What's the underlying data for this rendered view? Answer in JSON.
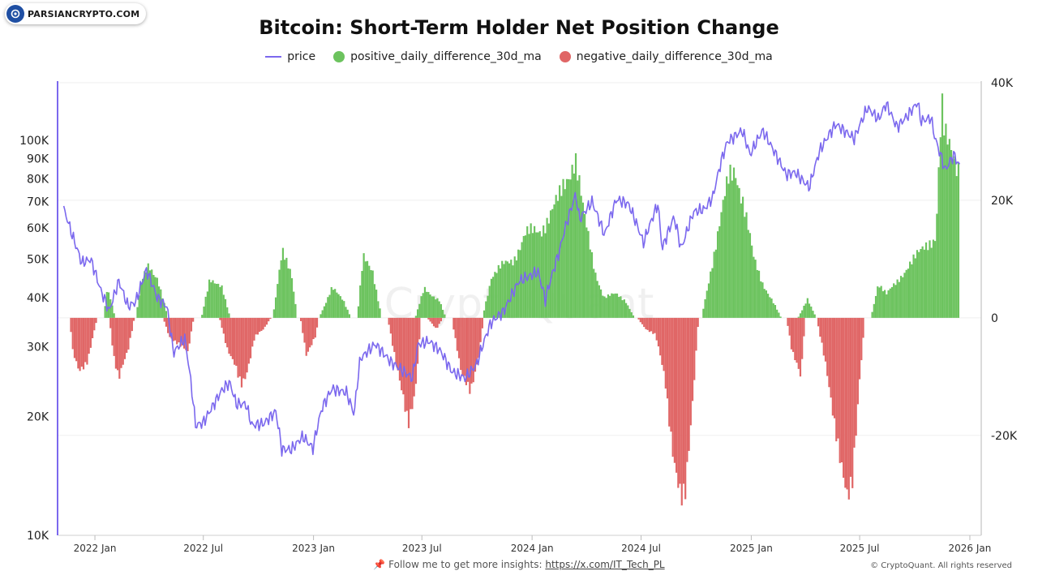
{
  "logo": {
    "text": "PARSIANCRYPTO.COM"
  },
  "footer": {
    "follow_text": "Follow me to get more insights: ",
    "link_text": "https://x.com/IT_Tech_PL",
    "copyright": "© CryptoQuant. All rights reserved"
  },
  "watermark": "CryptoQuant",
  "chart_data": {
    "type": "bar",
    "title": "Bitcoin: Short-Term Holder Net Position Change",
    "xlabel": "",
    "ylabel": "",
    "legend_position": "top-center",
    "colors": {
      "price": "#7b68ee",
      "positive": "#6cc35e",
      "negative": "#e06666"
    },
    "x_range": [
      "2021-11-01",
      "2026-01-20"
    ],
    "x_ticks": [
      {
        "date": "2022-01-01",
        "label": "2022 Jan"
      },
      {
        "date": "2022-07-01",
        "label": "2022 Jul"
      },
      {
        "date": "2023-01-01",
        "label": "2023 Jan"
      },
      {
        "date": "2023-07-01",
        "label": "2023 Jul"
      },
      {
        "date": "2024-01-01",
        "label": "2024 Jan"
      },
      {
        "date": "2024-07-01",
        "label": "2024 Jul"
      },
      {
        "date": "2025-01-01",
        "label": "2025 Jan"
      },
      {
        "date": "2025-07-01",
        "label": "2025 Jul"
      },
      {
        "date": "2026-01-01",
        "label": "2026 Jan"
      }
    ],
    "y_left": {
      "scale": "log",
      "range": [
        10000,
        140000
      ],
      "ticks": [
        {
          "value": 10000,
          "label": "10K"
        },
        {
          "value": 20000,
          "label": "20K"
        },
        {
          "value": 30000,
          "label": "30K"
        },
        {
          "value": 40000,
          "label": "40K"
        },
        {
          "value": 50000,
          "label": "50K"
        },
        {
          "value": 60000,
          "label": "60K"
        },
        {
          "value": 70000,
          "label": "70K"
        },
        {
          "value": 80000,
          "label": "80K"
        },
        {
          "value": 90000,
          "label": "90K"
        },
        {
          "value": 100000,
          "label": "100K"
        }
      ]
    },
    "y_right": {
      "scale": "linear",
      "range": [
        -37000,
        40000
      ],
      "ticks": [
        {
          "value": 40000,
          "label": "40K"
        },
        {
          "value": 20000,
          "label": "20K"
        },
        {
          "value": 0,
          "label": "0"
        },
        {
          "value": -20000,
          "label": "-20K"
        }
      ]
    },
    "series": [
      {
        "name": "price",
        "type": "line",
        "points": [
          [
            "2021-11-10",
            67000
          ],
          [
            "2021-11-25",
            57000
          ],
          [
            "2021-12-10",
            49000
          ],
          [
            "2021-12-25",
            50000
          ],
          [
            "2022-01-10",
            42000
          ],
          [
            "2022-01-25",
            37000
          ],
          [
            "2022-02-10",
            44000
          ],
          [
            "2022-02-25",
            38000
          ],
          [
            "2022-03-10",
            39000
          ],
          [
            "2022-03-28",
            47000
          ],
          [
            "2022-04-15",
            40000
          ],
          [
            "2022-05-01",
            38000
          ],
          [
            "2022-05-12",
            29000
          ],
          [
            "2022-05-31",
            31500
          ],
          [
            "2022-06-13",
            22500
          ],
          [
            "2022-06-18",
            19000
          ],
          [
            "2022-07-01",
            19300
          ],
          [
            "2022-07-15",
            21000
          ],
          [
            "2022-08-01",
            23300
          ],
          [
            "2022-08-14",
            24400
          ],
          [
            "2022-08-25",
            21500
          ],
          [
            "2022-09-10",
            21500
          ],
          [
            "2022-09-20",
            19000
          ],
          [
            "2022-10-10",
            19200
          ],
          [
            "2022-10-30",
            20600
          ],
          [
            "2022-11-09",
            16500
          ],
          [
            "2022-11-25",
            16500
          ],
          [
            "2022-12-14",
            17800
          ],
          [
            "2022-12-31",
            16600
          ],
          [
            "2023-01-15",
            21000
          ],
          [
            "2023-02-01",
            23500
          ],
          [
            "2023-02-25",
            23000
          ],
          [
            "2023-03-10",
            20200
          ],
          [
            "2023-03-20",
            28000
          ],
          [
            "2023-04-14",
            30500
          ],
          [
            "2023-05-10",
            27500
          ],
          [
            "2023-06-15",
            25000
          ],
          [
            "2023-06-25",
            30500
          ],
          [
            "2023-07-13",
            31000
          ],
          [
            "2023-08-01",
            29300
          ],
          [
            "2023-08-20",
            26000
          ],
          [
            "2023-09-11",
            25000
          ],
          [
            "2023-09-30",
            27000
          ],
          [
            "2023-10-24",
            34500
          ],
          [
            "2023-11-15",
            37000
          ],
          [
            "2023-12-10",
            44000
          ],
          [
            "2024-01-11",
            46500
          ],
          [
            "2024-01-23",
            39500
          ],
          [
            "2024-02-15",
            52000
          ],
          [
            "2024-02-28",
            62000
          ],
          [
            "2024-03-14",
            73000
          ],
          [
            "2024-03-20",
            63000
          ],
          [
            "2024-04-10",
            70000
          ],
          [
            "2024-05-01",
            57500
          ],
          [
            "2024-05-21",
            71000
          ],
          [
            "2024-06-10",
            69000
          ],
          [
            "2024-07-05",
            55000
          ],
          [
            "2024-07-29",
            69000
          ],
          [
            "2024-08-05",
            53000
          ],
          [
            "2024-08-25",
            64000
          ],
          [
            "2024-09-06",
            53000
          ],
          [
            "2024-09-27",
            66000
          ],
          [
            "2024-10-15",
            67000
          ],
          [
            "2024-10-29",
            72000
          ],
          [
            "2024-11-13",
            90000
          ],
          [
            "2024-11-22",
            99000
          ],
          [
            "2024-12-17",
            106000
          ],
          [
            "2024-12-30",
            92000
          ],
          [
            "2025-01-20",
            106000
          ],
          [
            "2025-02-03",
            97000
          ],
          [
            "2025-02-28",
            82000
          ],
          [
            "2025-03-15",
            83000
          ],
          [
            "2025-04-08",
            76000
          ],
          [
            "2025-04-25",
            94000
          ],
          [
            "2025-05-22",
            110000
          ],
          [
            "2025-06-22",
            101000
          ],
          [
            "2025-07-14",
            121000
          ],
          [
            "2025-08-02",
            113000
          ],
          [
            "2025-08-14",
            124000
          ],
          [
            "2025-09-01",
            108000
          ],
          [
            "2025-09-20",
            116000
          ],
          [
            "2025-10-06",
            125000
          ],
          [
            "2025-10-11",
            112000
          ],
          [
            "2025-10-28",
            114000
          ],
          [
            "2025-11-04",
            101000
          ],
          [
            "2025-11-21",
            84000
          ],
          [
            "2025-12-05",
            92000
          ],
          [
            "2025-12-15",
            86000
          ]
        ]
      },
      {
        "name": "positive_daily_difference_30d_ma",
        "type": "area",
        "points": [
          [
            "2022-01-15",
            0
          ],
          [
            "2022-01-22",
            5000
          ],
          [
            "2022-02-04",
            0
          ],
          [
            "2022-03-10",
            0
          ],
          [
            "2022-03-20",
            6000
          ],
          [
            "2022-04-01",
            9000
          ],
          [
            "2022-04-15",
            7000
          ],
          [
            "2022-05-03",
            0
          ],
          [
            "2022-06-28",
            0
          ],
          [
            "2022-07-12",
            7000
          ],
          [
            "2022-08-01",
            5000
          ],
          [
            "2022-08-15",
            0
          ],
          [
            "2022-10-25",
            0
          ],
          [
            "2022-11-10",
            11000
          ],
          [
            "2022-11-25",
            8000
          ],
          [
            "2022-12-05",
            0
          ],
          [
            "2023-01-10",
            0
          ],
          [
            "2023-02-01",
            5000
          ],
          [
            "2023-02-20",
            3000
          ],
          [
            "2023-03-05",
            0
          ],
          [
            "2023-03-15",
            0
          ],
          [
            "2023-03-25",
            10000
          ],
          [
            "2023-04-10",
            8000
          ],
          [
            "2023-04-25",
            0
          ],
          [
            "2023-06-20",
            0
          ],
          [
            "2023-07-05",
            5000
          ],
          [
            "2023-07-30",
            3000
          ],
          [
            "2023-08-10",
            0
          ],
          [
            "2023-10-10",
            0
          ],
          [
            "2023-10-25",
            7000
          ],
          [
            "2023-11-15",
            9000
          ],
          [
            "2023-12-01",
            10000
          ],
          [
            "2023-12-20",
            14000
          ],
          [
            "2024-01-15",
            15000
          ],
          [
            "2024-02-15",
            20000
          ],
          [
            "2024-03-13",
            28000
          ],
          [
            "2024-03-28",
            17000
          ],
          [
            "2024-04-15",
            8000
          ],
          [
            "2024-04-30",
            3500
          ],
          [
            "2024-05-20",
            4000
          ],
          [
            "2024-06-05",
            3000
          ],
          [
            "2024-06-20",
            0
          ],
          [
            "2024-10-10",
            0
          ],
          [
            "2024-10-25",
            8000
          ],
          [
            "2024-11-10",
            16000
          ],
          [
            "2024-11-25",
            24000
          ],
          [
            "2024-12-05",
            26000
          ],
          [
            "2024-12-18",
            20000
          ],
          [
            "2025-01-05",
            10000
          ],
          [
            "2025-01-20",
            6000
          ],
          [
            "2025-02-05",
            3000
          ],
          [
            "2025-02-20",
            0
          ],
          [
            "2025-03-20",
            0
          ],
          [
            "2025-04-05",
            3000
          ],
          [
            "2025-04-20",
            0
          ],
          [
            "2025-07-20",
            0
          ],
          [
            "2025-08-01",
            6000
          ],
          [
            "2025-08-15",
            4000
          ],
          [
            "2025-09-01",
            6000
          ],
          [
            "2025-09-20",
            9000
          ],
          [
            "2025-10-10",
            11000
          ],
          [
            "2025-10-25",
            13000
          ],
          [
            "2025-11-05",
            14000
          ],
          [
            "2025-11-15",
            36000
          ],
          [
            "2025-11-20",
            30000
          ],
          [
            "2025-12-01",
            28000
          ],
          [
            "2025-12-15",
            26000
          ]
        ]
      },
      {
        "name": "negative_daily_difference_30d_ma",
        "type": "area",
        "points": [
          [
            "2021-11-20",
            0
          ],
          [
            "2021-11-25",
            -6000
          ],
          [
            "2021-12-05",
            -9000
          ],
          [
            "2021-12-20",
            -7000
          ],
          [
            "2022-01-05",
            0
          ],
          [
            "2022-01-25",
            0
          ],
          [
            "2022-02-01",
            -6000
          ],
          [
            "2022-02-10",
            -10000
          ],
          [
            "2022-02-25",
            -6000
          ],
          [
            "2022-03-08",
            0
          ],
          [
            "2022-04-25",
            0
          ],
          [
            "2022-05-05",
            -3000
          ],
          [
            "2022-05-25",
            -5000
          ],
          [
            "2022-06-05",
            -6000
          ],
          [
            "2022-06-15",
            0
          ],
          [
            "2022-07-28",
            0
          ],
          [
            "2022-08-10",
            -5000
          ],
          [
            "2022-08-22",
            -8000
          ],
          [
            "2022-09-02",
            -12000
          ],
          [
            "2022-09-10",
            -10000
          ],
          [
            "2022-09-25",
            -3000
          ],
          [
            "2022-10-10",
            -2000
          ],
          [
            "2022-10-22",
            0
          ],
          [
            "2022-12-10",
            0
          ],
          [
            "2022-12-20",
            -6000
          ],
          [
            "2023-01-05",
            -3000
          ],
          [
            "2023-01-10",
            0
          ],
          [
            "2023-05-05",
            0
          ],
          [
            "2023-05-20",
            -8000
          ],
          [
            "2023-06-08",
            -19000
          ],
          [
            "2023-06-20",
            -12000
          ],
          [
            "2023-06-30",
            0
          ],
          [
            "2023-07-10",
            0
          ],
          [
            "2023-07-25",
            -2000
          ],
          [
            "2023-08-05",
            0
          ],
          [
            "2023-08-20",
            0
          ],
          [
            "2023-09-05",
            -10000
          ],
          [
            "2023-09-20",
            -12000
          ],
          [
            "2023-10-05",
            -6000
          ],
          [
            "2023-10-12",
            0
          ],
          [
            "2024-06-25",
            0
          ],
          [
            "2024-07-10",
            -2000
          ],
          [
            "2024-07-25",
            -3000
          ],
          [
            "2024-08-10",
            -10000
          ],
          [
            "2024-08-25",
            -24000
          ],
          [
            "2024-09-05",
            -32000
          ],
          [
            "2024-09-12",
            -32000
          ],
          [
            "2024-09-22",
            -18000
          ],
          [
            "2024-10-05",
            0
          ],
          [
            "2025-03-01",
            0
          ],
          [
            "2025-03-10",
            -6000
          ],
          [
            "2025-03-25",
            -10000
          ],
          [
            "2025-04-01",
            0
          ],
          [
            "2025-04-20",
            0
          ],
          [
            "2025-05-05",
            -8000
          ],
          [
            "2025-05-25",
            -20000
          ],
          [
            "2025-06-10",
            -32000
          ],
          [
            "2025-06-18",
            -30000
          ],
          [
            "2025-07-01",
            -10000
          ],
          [
            "2025-07-10",
            0
          ]
        ]
      }
    ]
  }
}
